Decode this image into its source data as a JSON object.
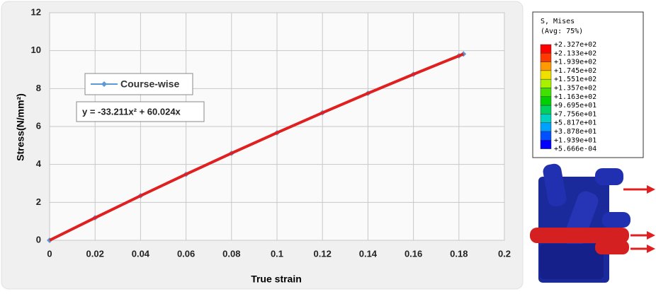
{
  "chart_data": {
    "type": "line",
    "x_label": "True strain",
    "y_label": "Stress(N/mm²)",
    "xlim": [
      0,
      0.2
    ],
    "xticks": [
      0,
      0.02,
      0.04,
      0.06,
      0.08,
      0.1,
      0.12,
      0.14,
      0.16,
      0.18,
      0.2
    ],
    "ylim": [
      0,
      12
    ],
    "yticks": [
      0,
      2,
      4,
      6,
      8,
      10,
      12
    ],
    "grid": true,
    "equation": "y = -33.211x² + 60.024x",
    "series": [
      {
        "name": "Course-wise",
        "color": "#5b9bd5",
        "x": [
          0,
          0.02,
          0.04,
          0.06,
          0.08,
          0.1,
          0.12,
          0.14,
          0.16,
          0.18,
          0.182
        ],
        "values": [
          0,
          1.187,
          2.348,
          3.482,
          4.589,
          5.67,
          6.725,
          7.752,
          8.754,
          9.728,
          9.824
        ]
      },
      {
        "color": "#e02020",
        "x": [
          0,
          0.02,
          0.04,
          0.06,
          0.08,
          0.1,
          0.12,
          0.14,
          0.16,
          0.18,
          0.182
        ],
        "values": [
          0,
          1.187,
          2.348,
          3.482,
          4.589,
          5.67,
          6.725,
          7.752,
          8.754,
          9.728,
          9.824
        ]
      }
    ]
  },
  "contour": {
    "title": "S, Mises",
    "subtitle": "(Avg: 75%)",
    "levels": [
      "+2.327e+02",
      "+2.133e+02",
      "+1.939e+02",
      "+1.745e+02",
      "+1.551e+02",
      "+1.357e+02",
      "+1.163e+02",
      "+9.695e+01",
      "+7.756e+01",
      "+5.817e+01",
      "+3.878e+01",
      "+1.939e+01",
      "+5.666e-04"
    ],
    "colors": [
      "#ff0000",
      "#ff3a00",
      "#ff9a00",
      "#f0e000",
      "#a8f000",
      "#40e000",
      "#00d000",
      "#00d060",
      "#00d0c0",
      "#00a0ff",
      "#0050ff",
      "#0000ff"
    ]
  }
}
